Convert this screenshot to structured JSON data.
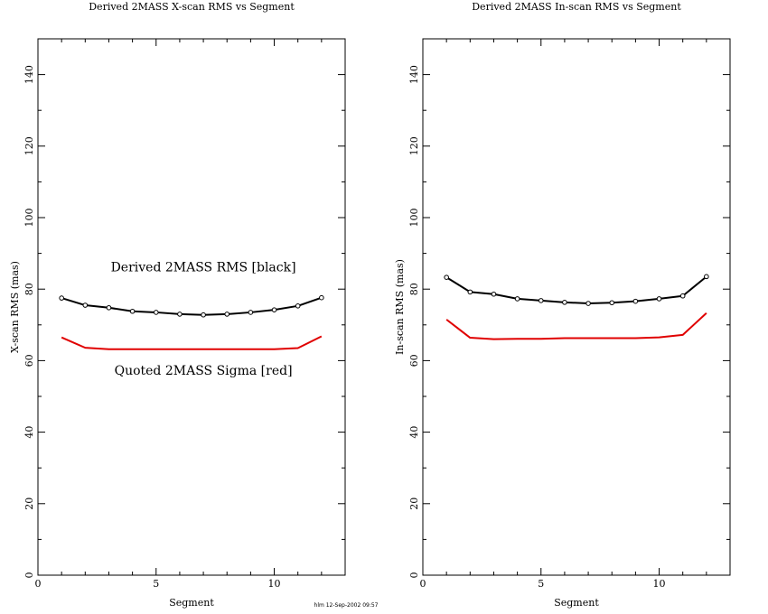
{
  "colors": {
    "measured": "#000000",
    "quoted": "#e00000",
    "frame": "#000000"
  },
  "stamp": "hlm 12-Sep-2002 09:57",
  "chart_data": [
    {
      "type": "line",
      "title": "Derived 2MASS X-scan RMS vs Segment",
      "xlabel": "Segment",
      "ylabel": "X-scan RMS (mas)",
      "xlim": [
        0,
        13
      ],
      "ylim": [
        0,
        150
      ],
      "xticks": [
        0,
        5,
        10
      ],
      "yticks": [
        0,
        20,
        40,
        60,
        80,
        100,
        120,
        140
      ],
      "x": [
        1,
        2,
        3,
        4,
        5,
        6,
        7,
        8,
        9,
        10,
        11,
        12
      ],
      "series": [
        {
          "name": "Derived 2MASS RMS",
          "color": "black",
          "markers": true,
          "values": [
            77.5,
            75.5,
            74.8,
            73.8,
            73.5,
            73.0,
            72.8,
            73.0,
            73.5,
            74.2,
            75.3,
            77.6
          ]
        },
        {
          "name": "Quoted 2MASS Sigma",
          "color": "red",
          "markers": false,
          "values": [
            66.5,
            63.6,
            63.2,
            63.2,
            63.2,
            63.2,
            63.2,
            63.2,
            63.2,
            63.2,
            63.5,
            66.8
          ]
        }
      ],
      "annotations": [
        {
          "text": "Derived 2MASS RMS [black]",
          "x": 7.0,
          "y": 85
        },
        {
          "text": "Quoted 2MASS Sigma [red]",
          "x": 7.0,
          "y": 56
        }
      ]
    },
    {
      "type": "line",
      "title": "Derived 2MASS In-scan RMS vs Segment",
      "xlabel": "Segment",
      "ylabel": "In-scan RMS (mas)",
      "xlim": [
        0,
        13
      ],
      "ylim": [
        0,
        150
      ],
      "xticks": [
        0,
        5,
        10
      ],
      "yticks": [
        0,
        20,
        40,
        60,
        80,
        100,
        120,
        140
      ],
      "x": [
        1,
        2,
        3,
        4,
        5,
        6,
        7,
        8,
        9,
        10,
        11,
        12
      ],
      "series": [
        {
          "name": "Derived 2MASS RMS",
          "color": "black",
          "markers": true,
          "values": [
            83.3,
            79.2,
            78.6,
            77.3,
            76.8,
            76.3,
            76.0,
            76.2,
            76.6,
            77.3,
            78.1,
            83.5
          ]
        },
        {
          "name": "Quoted 2MASS Sigma",
          "color": "red",
          "markers": false,
          "values": [
            71.5,
            66.4,
            66.0,
            66.1,
            66.1,
            66.3,
            66.3,
            66.3,
            66.3,
            66.5,
            67.2,
            73.3
          ]
        }
      ],
      "annotations": []
    }
  ]
}
